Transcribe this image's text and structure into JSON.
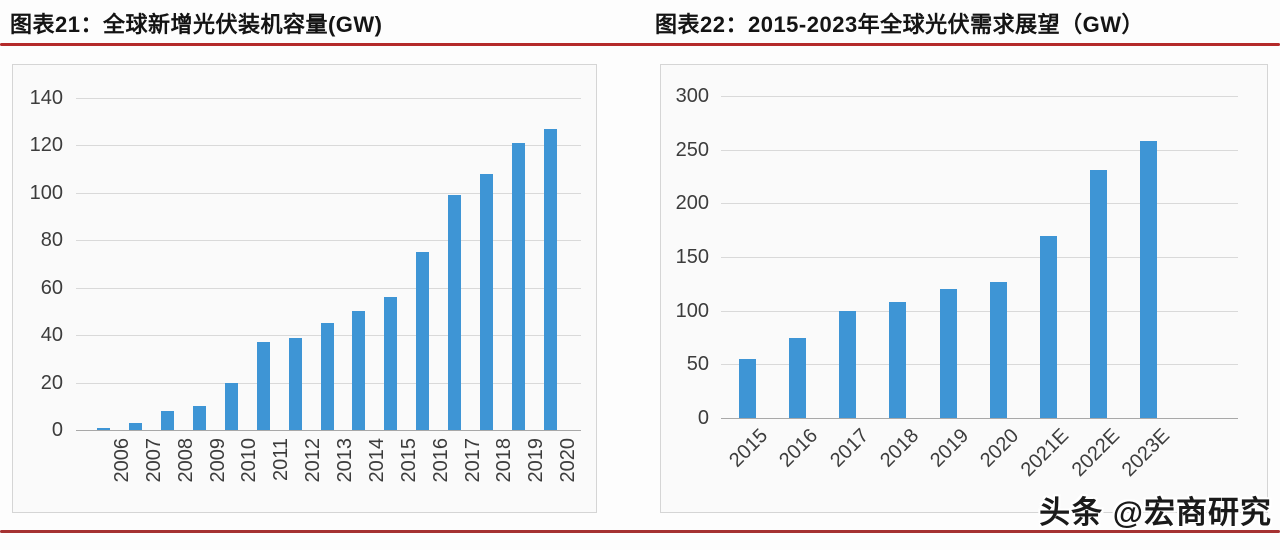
{
  "page": {
    "background": "#fdfdfd",
    "top_divider_color": "#b42a2a",
    "bottom_divider_color": "#a53232",
    "watermark": "头条 @宏商研究"
  },
  "chart_data": [
    {
      "type": "bar",
      "title": "图表21：全球新增光伏装机容量(GW)",
      "categories": [
        "2006",
        "2007",
        "2008",
        "2009",
        "2010",
        "2011",
        "2012",
        "2013",
        "2014",
        "2015",
        "2016",
        "2017",
        "2018",
        "2019",
        "2020"
      ],
      "values": [
        1,
        3,
        8,
        10,
        20,
        37,
        39,
        45,
        50,
        56,
        75,
        99,
        108,
        121,
        127
      ],
      "xlabel": "",
      "ylabel": "",
      "ylim": [
        0,
        140
      ],
      "ytick_step": 20,
      "grid": true,
      "legend": null,
      "x_tick_rotation": -90,
      "bar_color": "#3e95d5",
      "grid_color": "#d9d9d9",
      "axis_line_color": "#a8a8a8",
      "tick_label_color": "#3c3c3c"
    },
    {
      "type": "bar",
      "title": "图表22：2015-2023年全球光伏需求展望（GW）",
      "categories": [
        "2015",
        "2016",
        "2017",
        "2018",
        "2019",
        "2020",
        "2021E",
        "2022E",
        "2023E"
      ],
      "values": [
        55,
        75,
        100,
        108,
        120,
        127,
        170,
        231,
        258
      ],
      "xlabel": "",
      "ylabel": "",
      "ylim": [
        0,
        300
      ],
      "ytick_step": 50,
      "grid": true,
      "legend": null,
      "x_tick_rotation": -45,
      "bar_color": "#3e95d5",
      "grid_color": "#d9d9d9",
      "axis_line_color": "#a8a8a8",
      "tick_label_color": "#3c3c3c"
    }
  ]
}
